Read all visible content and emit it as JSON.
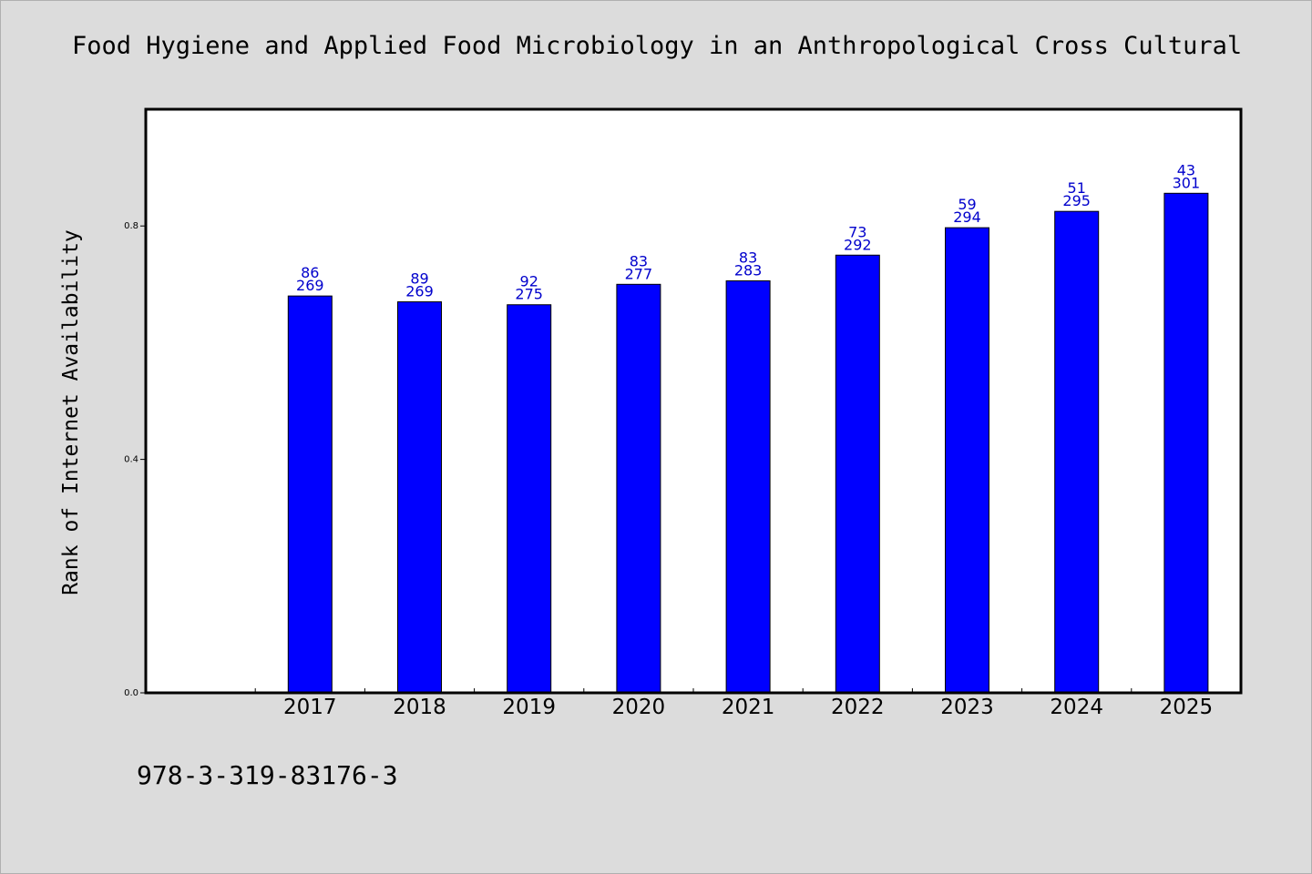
{
  "header": {
    "title": "Food Hygiene and Applied Food Microbiology in an Anthropological Cross Cultural"
  },
  "footer": {
    "code": "978-3-319-83176-3"
  },
  "colors": {
    "background": "#dcdcdc",
    "plot_background": "#ffffff",
    "bar_fill": "#0000ff",
    "label_color": "#0000cc"
  },
  "chart_data": {
    "type": "bar",
    "title": "Food Hygiene and Applied Food Microbiology in an Anthropological Cross Cultural",
    "xlabel": "",
    "ylabel": "Rank of Internet Availability",
    "categories": [
      "2017",
      "2018",
      "2019",
      "2020",
      "2021",
      "2022",
      "2023",
      "2024",
      "2025"
    ],
    "values": [
      0.68,
      0.67,
      0.665,
      0.7,
      0.706,
      0.75,
      0.797,
      0.825,
      0.856
    ],
    "bar_labels_top": [
      "86",
      "89",
      "92",
      "83",
      "83",
      "73",
      "59",
      "51",
      "43"
    ],
    "bar_labels_bottom": [
      "269",
      "269",
      "275",
      "277",
      "283",
      "292",
      "294",
      "295",
      "301"
    ],
    "y_ticks": [
      "0.0",
      "0.4",
      "0.8"
    ],
    "ylim": [
      0,
      1.0
    ],
    "grid": false,
    "legend": "none"
  }
}
